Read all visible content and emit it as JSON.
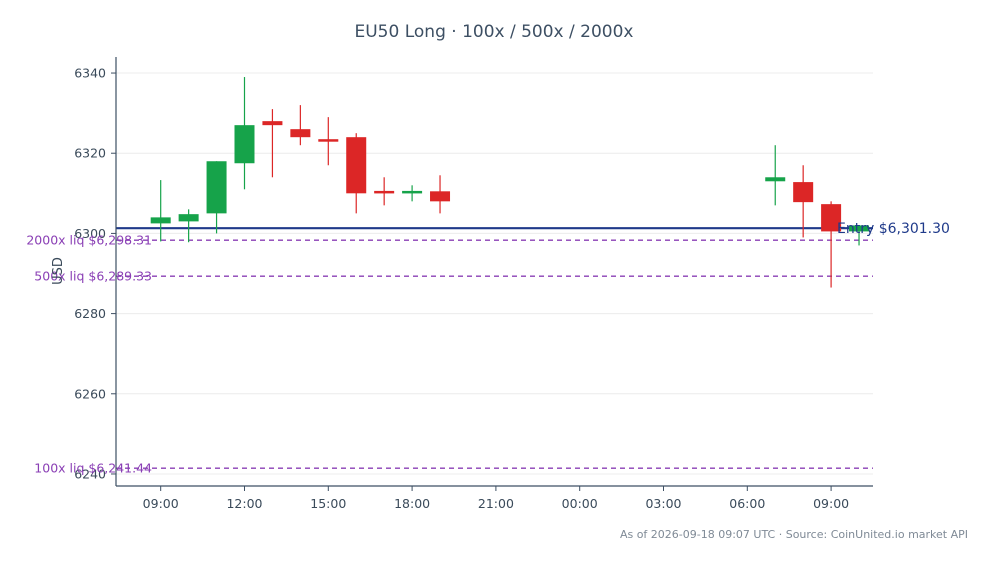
{
  "chart_data": {
    "type": "candlestick",
    "title": "EU50 Long · 100x / 500x / 2000x",
    "ylabel": "USD",
    "xlabel": "",
    "ylim": [
      6237,
      6344
    ],
    "yticks": [
      6240,
      6260,
      6280,
      6300,
      6320,
      6340
    ],
    "x_range_hours": [
      7.4,
      34.5
    ],
    "xticks": [
      {
        "hour": 9,
        "label": "09:00"
      },
      {
        "hour": 12,
        "label": "12:00"
      },
      {
        "hour": 15,
        "label": "15:00"
      },
      {
        "hour": 18,
        "label": "18:00"
      },
      {
        "hour": 21,
        "label": "21:00"
      },
      {
        "hour": 24,
        "label": "00:00"
      },
      {
        "hour": 27,
        "label": "03:00"
      },
      {
        "hour": 30,
        "label": "06:00"
      },
      {
        "hour": 33,
        "label": "09:00"
      }
    ],
    "candles": [
      {
        "hour": 9,
        "open": 6302.5,
        "high": 6313.3,
        "low": 6298.0,
        "close": 6304.0
      },
      {
        "hour": 10,
        "open": 6303.0,
        "high": 6306.0,
        "low": 6297.8,
        "close": 6304.8
      },
      {
        "hour": 11,
        "open": 6305.0,
        "high": 6318.0,
        "low": 6300.0,
        "close": 6318.0
      },
      {
        "hour": 12,
        "open": 6317.5,
        "high": 6339.0,
        "low": 6311.0,
        "close": 6327.0
      },
      {
        "hour": 13,
        "open": 6328.0,
        "high": 6331.0,
        "low": 6314.0,
        "close": 6327.0
      },
      {
        "hour": 14,
        "open": 6326.0,
        "high": 6332.0,
        "low": 6322.0,
        "close": 6324.0
      },
      {
        "hour": 15,
        "open": 6323.5,
        "high": 6329.0,
        "low": 6317.0,
        "close": 6323.0
      },
      {
        "hour": 16,
        "open": 6324.0,
        "high": 6325.0,
        "low": 6305.0,
        "close": 6310.0
      },
      {
        "hour": 17,
        "open": 6310.6,
        "high": 6314.0,
        "low": 6307.0,
        "close": 6310.2
      },
      {
        "hour": 18,
        "open": 6310.2,
        "high": 6312.0,
        "low": 6308.0,
        "close": 6310.6
      },
      {
        "hour": 19,
        "open": 6310.5,
        "high": 6314.5,
        "low": 6305.0,
        "close": 6308.0
      },
      {
        "hour": 31,
        "open": 6313.0,
        "high": 6322.0,
        "low": 6307.0,
        "close": 6314.0
      },
      {
        "hour": 32,
        "open": 6312.8,
        "high": 6317.0,
        "low": 6299.0,
        "close": 6307.8
      },
      {
        "hour": 33,
        "open": 6307.3,
        "high": 6308.0,
        "low": 6286.5,
        "close": 6300.5
      },
      {
        "hour": 34,
        "open": 6300.5,
        "high": 6302.0,
        "low": 6297.0,
        "close": 6302.0
      }
    ],
    "entry": {
      "value": 6301.3,
      "label": "Entry $6,301.30",
      "color": "#1f3a8a"
    },
    "liquidation_levels": [
      {
        "value": 6298.31,
        "label": "2000x liq $6,298.31"
      },
      {
        "value": 6289.33,
        "label": "500x liq $6,289.33"
      },
      {
        "value": 6241.44,
        "label": "100x liq $6,241.44"
      }
    ],
    "colors": {
      "up": "#16a34a",
      "down": "#dc2626",
      "liq": "#8a3fb5",
      "entry": "#1f3a8a",
      "grid": "#ececec",
      "axis": "#3d4f63"
    },
    "grid": true,
    "footer": "As of 2026-09-18 09:07 UTC · Source: CoinUnited.io market API"
  }
}
